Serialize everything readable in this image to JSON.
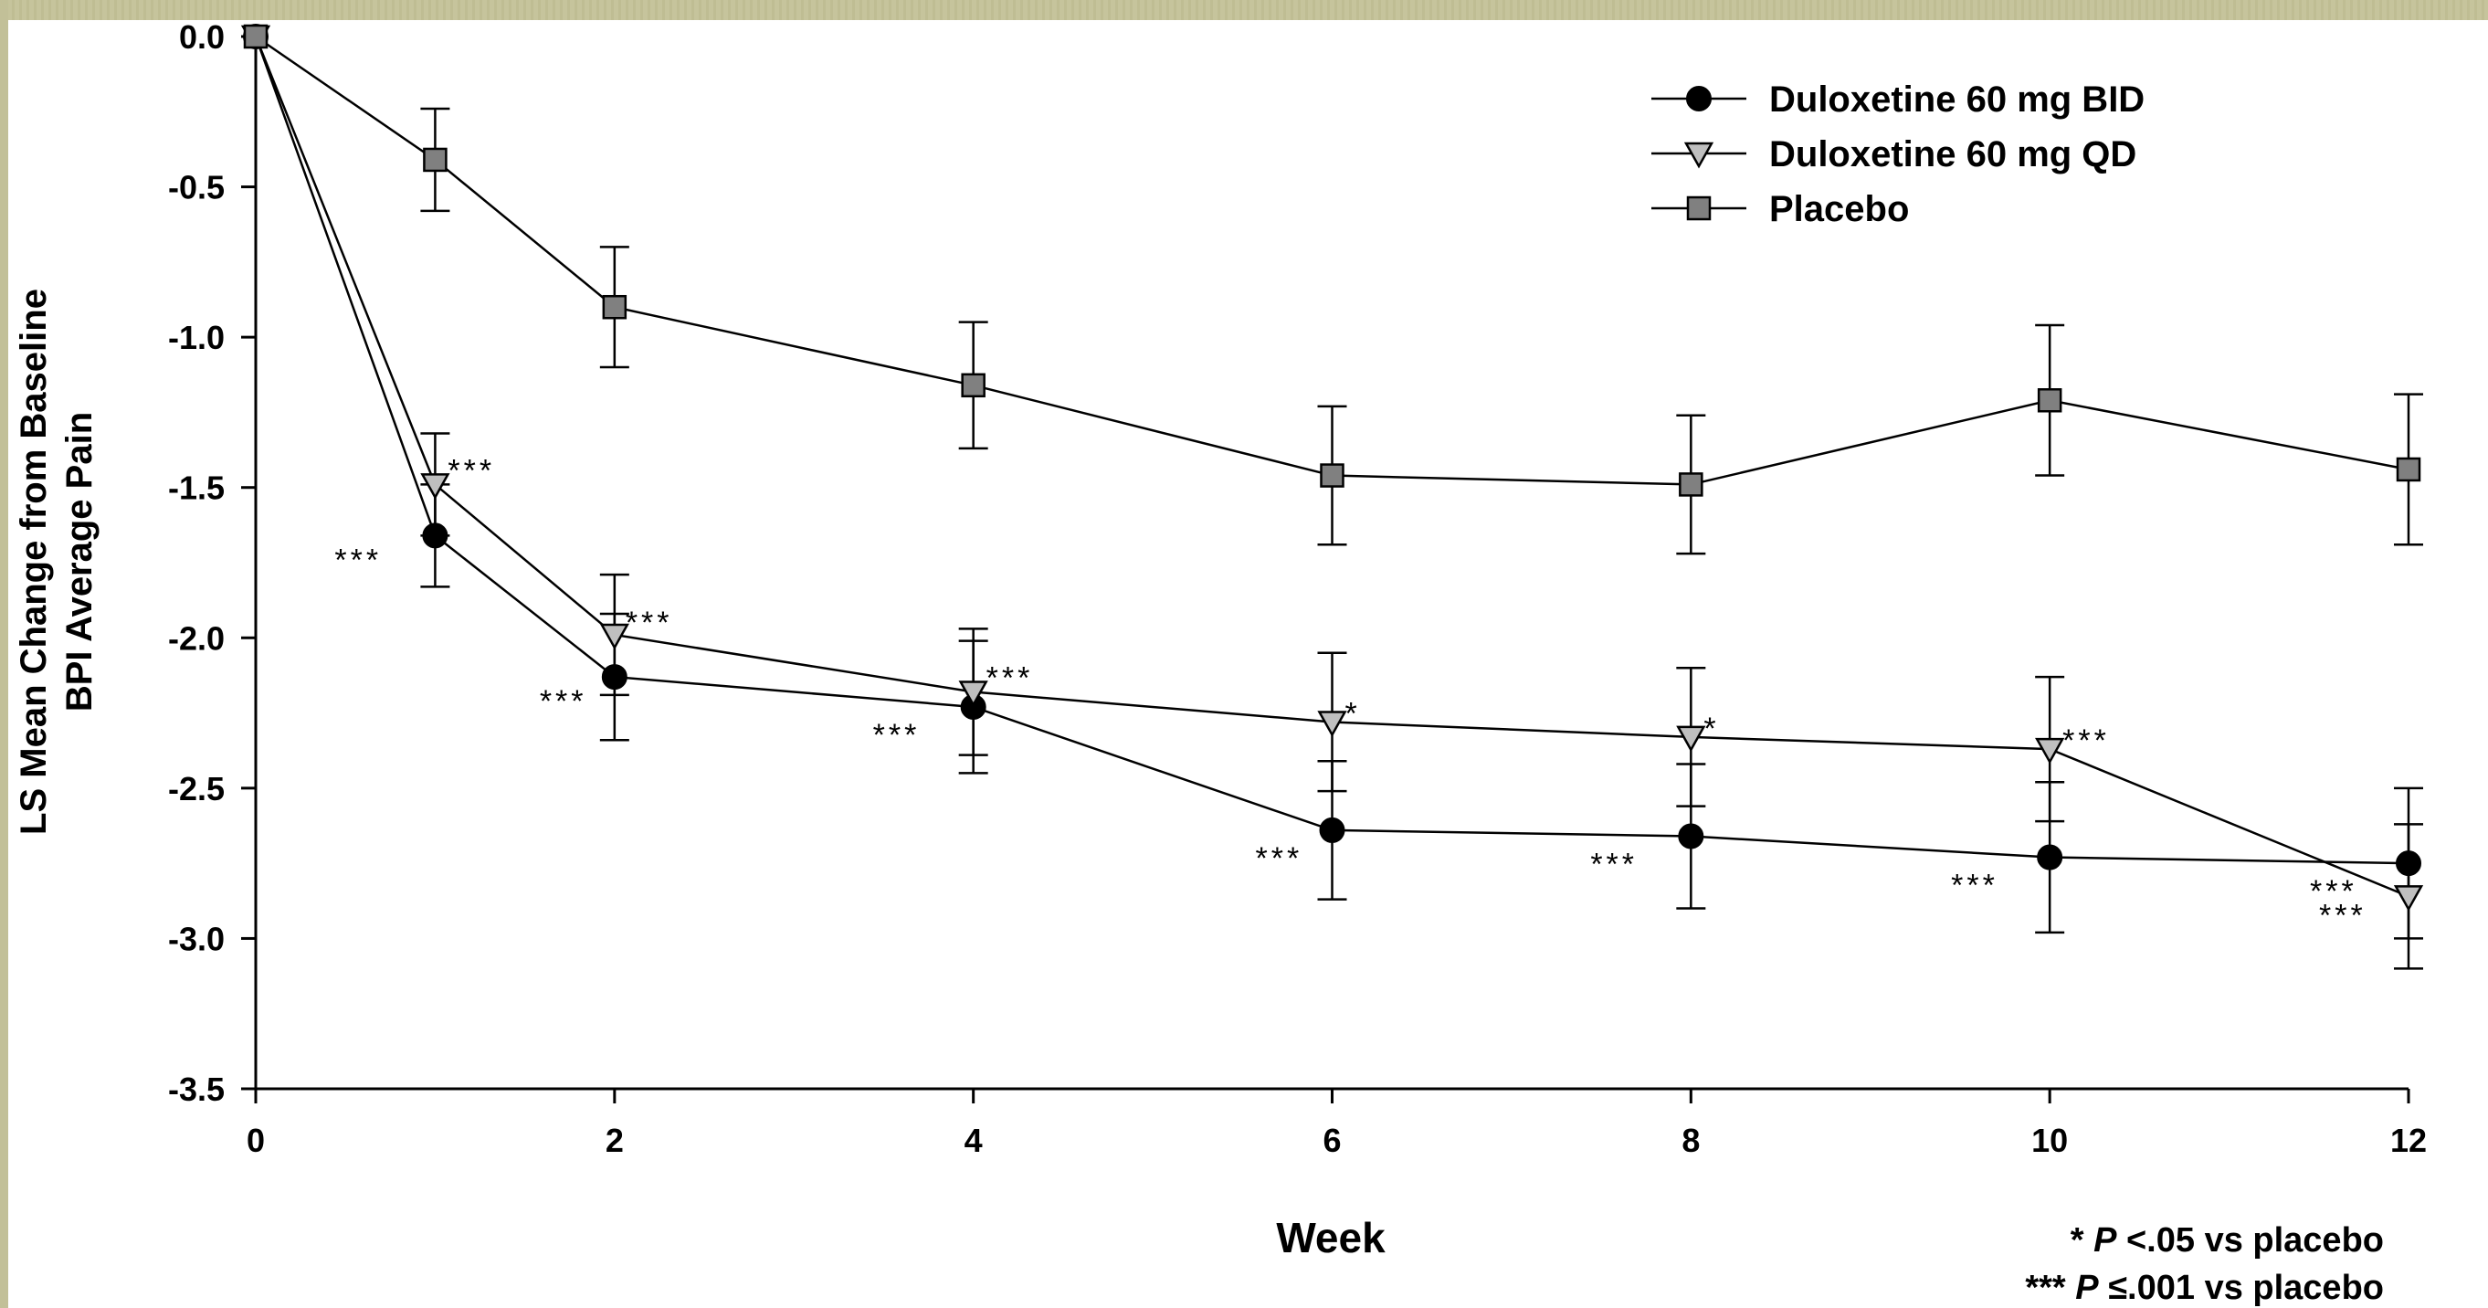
{
  "chart_data": {
    "type": "line",
    "title": "",
    "xlabel": "Week",
    "ylabel_lines": [
      "LS Mean Change from Baseline",
      "BPI Average Pain"
    ],
    "xlim": [
      0,
      12
    ],
    "ylim": [
      -3.5,
      0
    ],
    "x_ticks": [
      0,
      2,
      4,
      6,
      8,
      10,
      12
    ],
    "x_tick_labels": [
      "0",
      "2",
      "4",
      "6",
      "8",
      "10",
      "12"
    ],
    "y_ticks": [
      0,
      -0.5,
      -1,
      -1.5,
      -2,
      -2.5,
      -3,
      -3.5
    ],
    "y_tick_labels": [
      "0.0",
      "-0.5",
      "-1.0",
      "-1.5",
      "-2.0",
      "-2.5",
      "-3.0",
      "-3.5"
    ],
    "grid": false,
    "legend_position": "top-right",
    "x": [
      0,
      1,
      2,
      4,
      6,
      8,
      10,
      12
    ],
    "series": [
      {
        "name": "Duloxetine 60 mg BID",
        "marker": "circle",
        "color": "#000000",
        "values": [
          0,
          -1.66,
          -2.13,
          -2.23,
          -2.64,
          -2.66,
          -2.73,
          -2.75
        ],
        "error": [
          0,
          0.17,
          0.21,
          0.22,
          0.23,
          0.24,
          0.25,
          0.25
        ],
        "significance": [
          "",
          "***",
          "***",
          "***",
          "***",
          "***",
          "***",
          "***"
        ]
      },
      {
        "name": "Duloxetine 60 mg QD",
        "marker": "triangle-down",
        "color": "#bfbfbf",
        "values": [
          0,
          -1.49,
          -1.99,
          -2.18,
          -2.28,
          -2.33,
          -2.37,
          -2.86
        ],
        "error": [
          0,
          0.17,
          0.2,
          0.21,
          0.23,
          0.23,
          0.24,
          0.24
        ],
        "significance": [
          "",
          "***",
          "***",
          "***",
          "*",
          "*",
          "***",
          "***"
        ]
      },
      {
        "name": "Placebo",
        "marker": "square",
        "color": "#808080",
        "values": [
          0,
          -0.41,
          -0.9,
          -1.16,
          -1.46,
          -1.49,
          -1.21,
          -1.44
        ],
        "error": [
          0,
          0.17,
          0.2,
          0.21,
          0.23,
          0.23,
          0.25,
          0.25
        ],
        "significance": [
          "",
          "",
          "",
          "",
          "",
          "",
          "",
          ""
        ]
      }
    ],
    "footnotes": [
      {
        "marker": "*",
        "italic": "P",
        "text": " <.05 vs placebo"
      },
      {
        "marker": "***",
        "italic": "P",
        "text": " ≤.001 vs placebo"
      }
    ]
  }
}
